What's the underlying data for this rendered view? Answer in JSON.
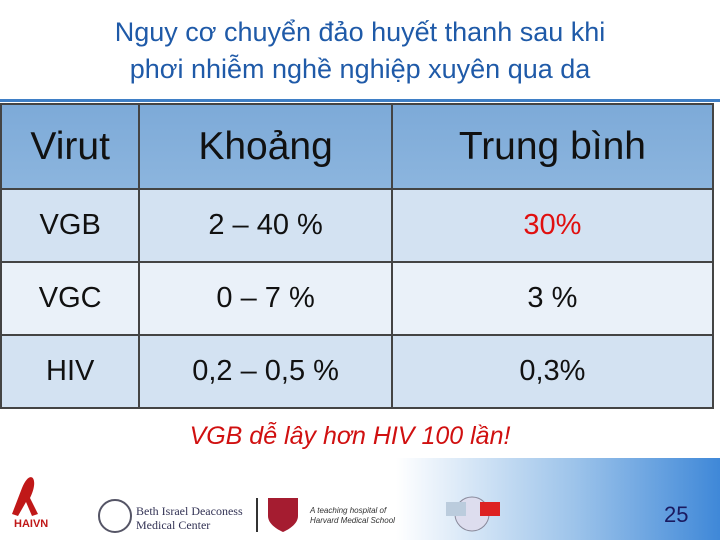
{
  "header": {
    "title": [
      "Nguy cơ chuyển đảo huyết thanh sau khi",
      "phơi nhiễm nghề nghiệp xuyên qua da"
    ]
  },
  "table": {
    "columns": [
      "Virut",
      "Khoảng",
      "Trung bình"
    ],
    "rows": [
      [
        "VGB",
        "2 – 40 %",
        "30%"
      ],
      [
        "VGC",
        "0 – 7 %",
        "3 %"
      ],
      [
        "HIV",
        "0,2 – 0,5 %",
        "0,3%"
      ]
    ]
  },
  "note": "VGB dễ lây hơn HIV 100 lần!",
  "footer": {
    "logos": [
      "HAIVN",
      "Beth Israel Deaconess",
      "Medical Center",
      "A teaching hospital of",
      "Harvard Medical School"
    ],
    "page_number": "25"
  }
}
